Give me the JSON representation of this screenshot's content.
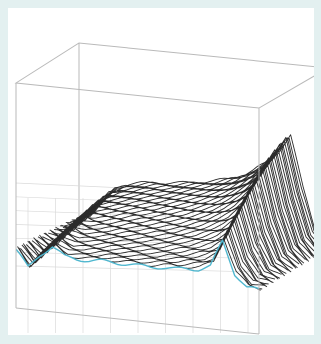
{
  "chart_data": {
    "type": "line",
    "view": "3d-waterfall",
    "title": "",
    "xlabel": "",
    "ylabel": "",
    "zlabel": "",
    "grid": true,
    "legend": "none",
    "tick_labels": [],
    "series_count": 44,
    "highlight_series_index": 0,
    "x": [
      0.0,
      0.05,
      0.1,
      0.15,
      0.2,
      0.25,
      0.3,
      0.35,
      0.4,
      0.45,
      0.5,
      0.55,
      0.6,
      0.65,
      0.7,
      0.75,
      0.8,
      0.85,
      0.9,
      0.95,
      1.0
    ],
    "front_trace": [
      0.14,
      0.0,
      0.12,
      0.2,
      0.13,
      0.12,
      0.12,
      0.13,
      0.13,
      0.13,
      0.13,
      0.13,
      0.14,
      0.14,
      0.15,
      0.16,
      0.2,
      0.42,
      0.16,
      0.06,
      0.05
    ],
    "back_trace": [
      0.0,
      0.05,
      0.18,
      0.3,
      0.35,
      0.37,
      0.39,
      0.4,
      0.41,
      0.43,
      0.45,
      0.47,
      0.5,
      0.54,
      0.6,
      0.68,
      0.79,
      0.95,
      0.5,
      0.14,
      0.0
    ],
    "colors": {
      "lines": "#2b2b2b",
      "highlight": "#4fb7cf",
      "box": "#b9b9b9",
      "grid": "#dadada",
      "background": "#e3f0f0"
    }
  }
}
